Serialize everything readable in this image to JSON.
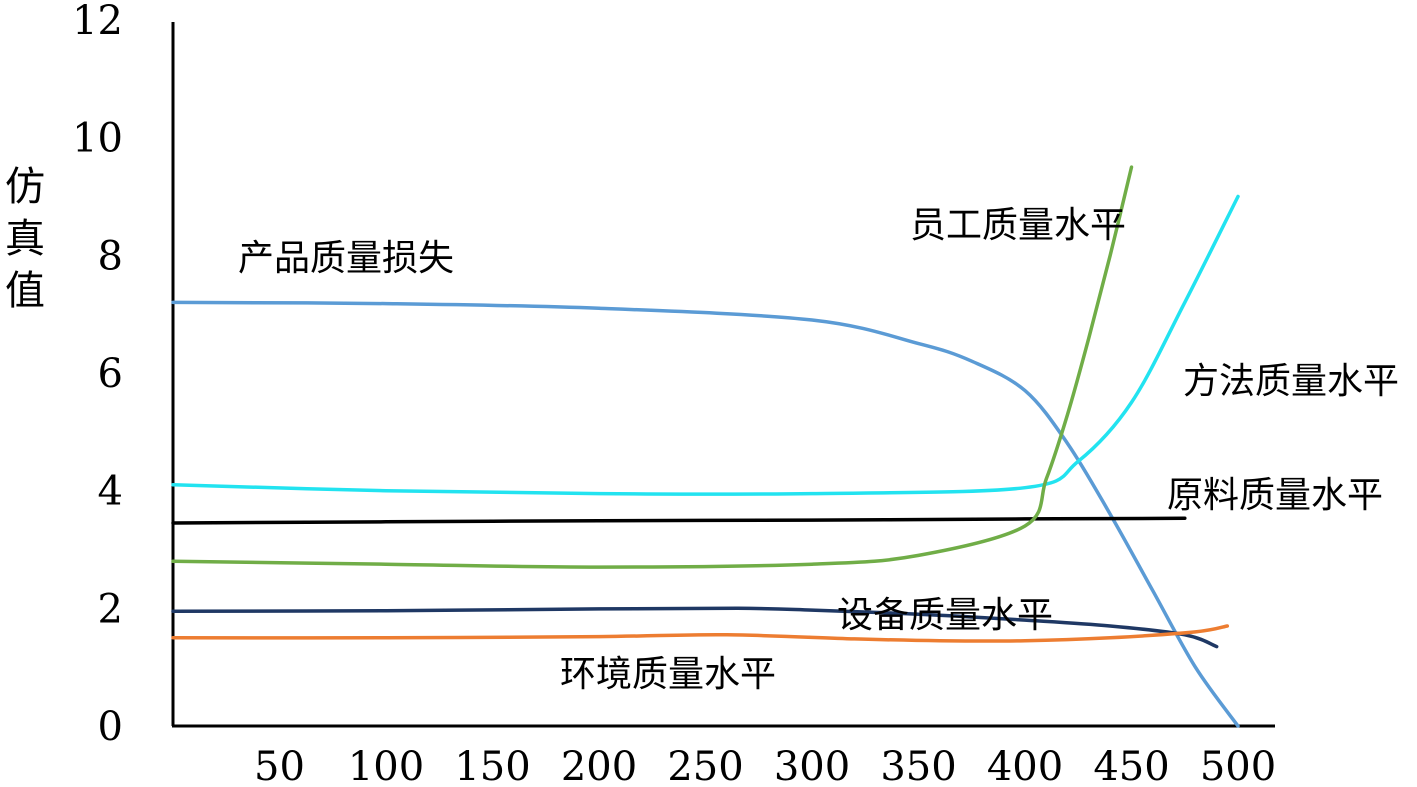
{
  "chart_data": {
    "type": "line",
    "ylabel": "仿真值",
    "xlabel": "",
    "xlim": [
      0,
      500
    ],
    "ylim": [
      0,
      12
    ],
    "xticks": [
      50,
      100,
      150,
      200,
      250,
      300,
      350,
      400,
      450,
      500
    ],
    "yticks": [
      0,
      2,
      4,
      6,
      8,
      10,
      12
    ],
    "grid": false,
    "series": [
      {
        "name": "产品质量损失",
        "color": "#5b9bd5",
        "x": [
          0,
          100,
          200,
          300,
          350,
          375,
          400,
          420,
          440,
          460,
          480,
          500
        ],
        "y": [
          7.2,
          7.18,
          7.1,
          6.9,
          6.5,
          6.2,
          5.7,
          4.8,
          3.6,
          2.3,
          1.0,
          0.0
        ]
      },
      {
        "name": "方法质量水平",
        "color": "#22e3f0",
        "x": [
          0,
          100,
          200,
          300,
          400,
          425,
          450,
          475,
          500
        ],
        "y": [
          4.1,
          4.0,
          3.95,
          3.95,
          4.05,
          4.5,
          5.5,
          7.2,
          9.0
        ]
      },
      {
        "name": "原料质量水平",
        "color": "#000000",
        "x": [
          0,
          100,
          200,
          300,
          400,
          475
        ],
        "y": [
          3.45,
          3.47,
          3.49,
          3.5,
          3.52,
          3.53
        ]
      },
      {
        "name": "员工质量水平",
        "color": "#70ad47",
        "x": [
          0,
          100,
          200,
          300,
          350,
          400,
          410,
          420,
          430,
          440,
          450
        ],
        "y": [
          2.8,
          2.75,
          2.7,
          2.75,
          2.9,
          3.4,
          4.2,
          5.3,
          6.6,
          8.0,
          9.5
        ]
      },
      {
        "name": "设备质量水平",
        "color": "#1f3864",
        "x": [
          0,
          100,
          200,
          265,
          300,
          350,
          400,
          440,
          475,
          490
        ],
        "y": [
          1.95,
          1.96,
          1.99,
          2.0,
          1.97,
          1.9,
          1.8,
          1.7,
          1.55,
          1.35
        ]
      },
      {
        "name": "环境质量水平",
        "color": "#ed7d31",
        "x": [
          0,
          100,
          200,
          260,
          320,
          360,
          400,
          440,
          480,
          495
        ],
        "y": [
          1.5,
          1.5,
          1.52,
          1.55,
          1.48,
          1.45,
          1.45,
          1.5,
          1.6,
          1.7
        ]
      }
    ]
  }
}
